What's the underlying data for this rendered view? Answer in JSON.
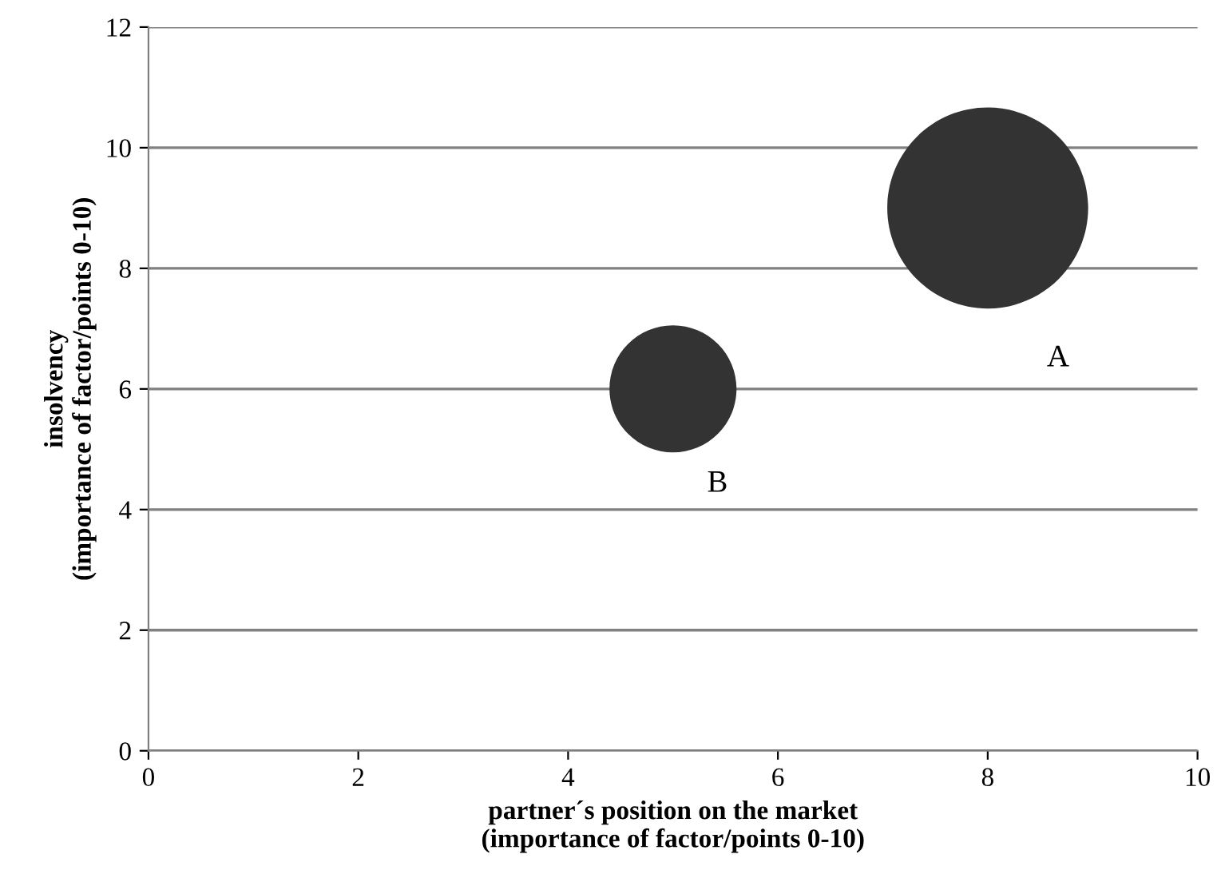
{
  "chart_data": {
    "type": "bubble",
    "xlabel": "partner´s position on the market\n(importance of factor/points 0-10)",
    "ylabel": "insolvency\n(importance of factor/points 0-10)",
    "series": [
      {
        "name": "A",
        "color": "#333333",
        "x": [
          8
        ],
        "values": [
          9
        ],
        "sizes": [
          1
        ]
      },
      {
        "name": "B",
        "color": "#333333",
        "x": [
          5
        ],
        "values": [
          6
        ],
        "sizes": [
          0.4
        ]
      }
    ],
    "xlim": [
      0,
      10
    ],
    "xticks": [
      0,
      2,
      4,
      6,
      8,
      10
    ],
    "ylim": [
      0,
      12
    ],
    "yticks": [
      0,
      2,
      4,
      6,
      8,
      10,
      12
    ],
    "grid": "y"
  }
}
